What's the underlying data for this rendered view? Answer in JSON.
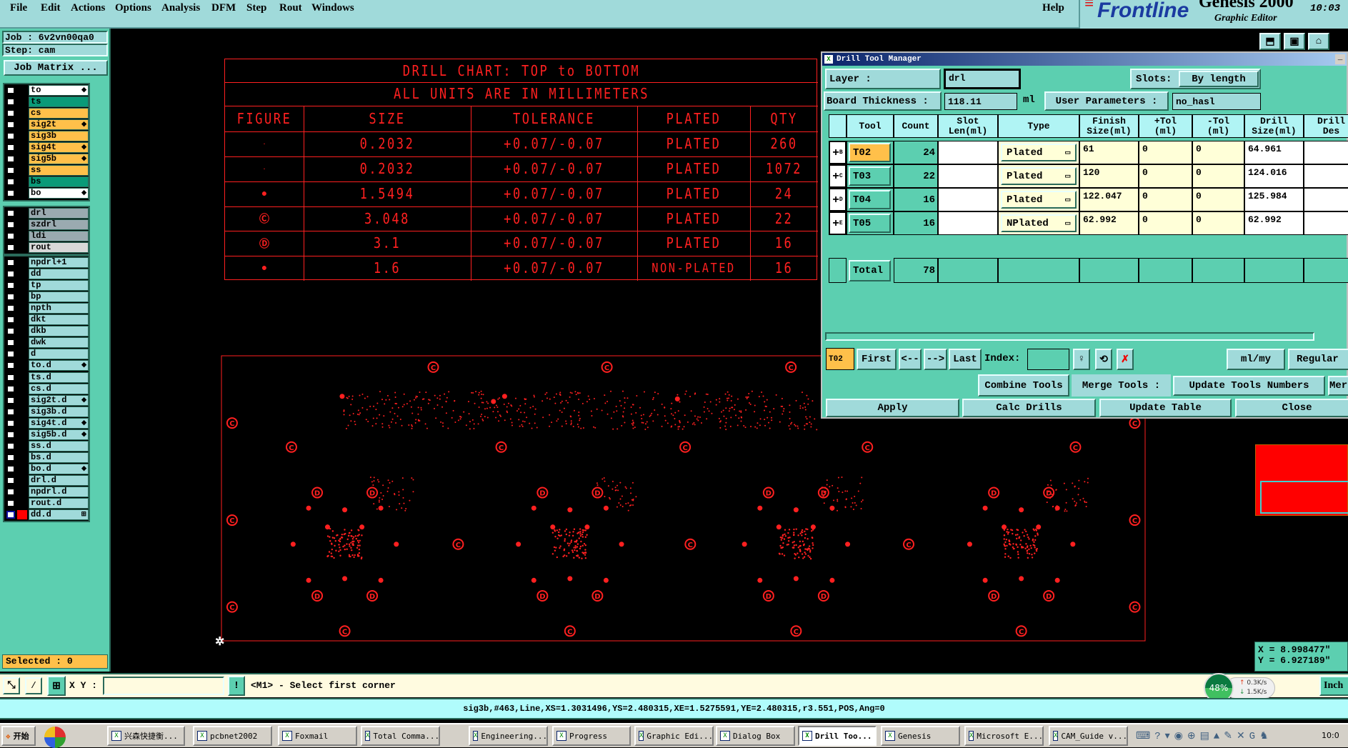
{
  "menubar": {
    "items": [
      "File",
      "Edit",
      "Actions",
      "Options",
      "Analysis",
      "DFM",
      "Step",
      "Rout",
      "Windows"
    ],
    "help": "Help"
  },
  "branding": {
    "logo": "Frontline",
    "product": "Genesis 2000",
    "subtitle": "Graphic Editor",
    "time": "10:03"
  },
  "left_panel": {
    "job": "Job :  6v2vn00qa0",
    "step": "Step:  cam",
    "job_matrix": "Job Matrix ...",
    "selected": "Selected : 0",
    "layers": [
      {
        "name": "to",
        "color": "#ffffff",
        "arrow": true,
        "group": 0
      },
      {
        "name": "ts",
        "color": "#0a9a78",
        "group": 0
      },
      {
        "name": "cs",
        "color": "#ffc04a",
        "group": 0
      },
      {
        "name": "sig2t",
        "color": "#ffc04a",
        "arrow": true,
        "group": 0
      },
      {
        "name": "sig3b",
        "color": "#ffc04a",
        "group": 0
      },
      {
        "name": "sig4t",
        "color": "#ffc04a",
        "arrow": true,
        "group": 0
      },
      {
        "name": "sig5b",
        "color": "#ffc04a",
        "arrow": true,
        "group": 0
      },
      {
        "name": "ss",
        "color": "#ffc04a",
        "group": 0
      },
      {
        "name": "bs",
        "color": "#0a9a78",
        "group": 0
      },
      {
        "name": "bo",
        "color": "#ffffff",
        "arrow": true,
        "group": 0
      },
      {
        "name": "drl",
        "color": "#9aaab0",
        "group": 1
      },
      {
        "name": "szdrl",
        "color": "#9aaab0",
        "group": 1
      },
      {
        "name": "ldi",
        "color": "#9aaab0",
        "group": 1
      },
      {
        "name": "rout",
        "color": "#d8d8d8",
        "group": 1
      },
      {
        "name": "npdrl+1",
        "color": "#a0dada",
        "group": 2
      },
      {
        "name": "dd",
        "color": "#a0dada",
        "group": 2
      },
      {
        "name": "tp",
        "color": "#a0dada",
        "group": 2
      },
      {
        "name": "bp",
        "color": "#a0dada",
        "group": 2
      },
      {
        "name": "npth",
        "color": "#a0dada",
        "group": 2
      },
      {
        "name": "dkt",
        "color": "#a0dada",
        "group": 2
      },
      {
        "name": "dkb",
        "color": "#a0dada",
        "group": 2
      },
      {
        "name": "dwk",
        "color": "#a0dada",
        "group": 2
      },
      {
        "name": "d",
        "color": "#a0dada",
        "group": 2
      },
      {
        "name": "to.d",
        "color": "#a0dada",
        "arrow": true,
        "group": 2
      },
      {
        "name": "ts.d",
        "color": "#a0dada",
        "group": 2
      },
      {
        "name": "cs.d",
        "color": "#a0dada",
        "group": 2
      },
      {
        "name": "sig2t.d",
        "color": "#a0dada",
        "arrow": true,
        "group": 2
      },
      {
        "name": "sig3b.d",
        "color": "#a0dada",
        "group": 2
      },
      {
        "name": "sig4t.d",
        "color": "#a0dada",
        "arrow": true,
        "group": 2
      },
      {
        "name": "sig5b.d",
        "color": "#a0dada",
        "arrow": true,
        "group": 2
      },
      {
        "name": "ss.d",
        "color": "#a0dada",
        "group": 2
      },
      {
        "name": "bs.d",
        "color": "#a0dada",
        "group": 2
      },
      {
        "name": "bo.d",
        "color": "#a0dada",
        "arrow": true,
        "group": 2
      },
      {
        "name": "drl.d",
        "color": "#a0dada",
        "group": 2
      },
      {
        "name": "npdrl.d",
        "color": "#a0dada",
        "group": 2
      },
      {
        "name": "rout.d",
        "color": "#a0dada",
        "group": 2
      },
      {
        "name": "dd.d",
        "color": "#a0dada",
        "active": true,
        "group": 2
      }
    ]
  },
  "drill_chart": {
    "title": "DRILL CHART: TOP to BOTTOM",
    "subtitle": "ALL UNITS ARE IN MILLIMETERS",
    "headers": [
      "FIGURE",
      "SIZE",
      "TOLERANCE",
      "PLATED",
      "QTY"
    ],
    "rows": [
      {
        "figure": "dot-small",
        "size": "0.2032",
        "tol": "+0.07/-0.07",
        "plated": "PLATED",
        "qty": "260"
      },
      {
        "figure": "dot-small",
        "size": "0.2032",
        "tol": "+0.07/-0.07",
        "plated": "PLATED",
        "qty": "1072"
      },
      {
        "figure": "circle-v",
        "size": "1.5494",
        "tol": "+0.07/-0.07",
        "plated": "PLATED",
        "qty": "24"
      },
      {
        "figure": "circle-c",
        "size": "3.048",
        "tol": "+0.07/-0.07",
        "plated": "PLATED",
        "qty": "22"
      },
      {
        "figure": "circle-d",
        "size": "3.1",
        "tol": "+0.07/-0.07",
        "plated": "PLATED",
        "qty": "16"
      },
      {
        "figure": "dot-filled",
        "size": "1.6",
        "tol": "+0.07/-0.07",
        "plated": "NON-PLATED",
        "qty": "16"
      }
    ]
  },
  "drill_tool_manager": {
    "title": "Drill Tool Manager",
    "layer_label": "Layer       :",
    "layer_value": "drl",
    "slots_label": "Slots:",
    "slots_value": "By length",
    "board_thickness_label": "Board Thickness :",
    "board_thickness": "118.11",
    "thickness_unit": "ml",
    "user_params_label": "User Parameters :",
    "user_params_value": "no_hasl",
    "columns": [
      "",
      "Tool",
      "Count",
      "Slot\nLen(ml)",
      "Type",
      "Finish\nSize(ml)",
      "+Tol\n(ml)",
      "-Tol\n(ml)",
      "Drill\nSize(ml)",
      "Drill\nDes"
    ],
    "tools": [
      {
        "letter": "B",
        "tool": "T02",
        "count": "24",
        "slot": "",
        "type": "Plated",
        "finish": "61",
        "ptol": "0",
        "mtol": "0",
        "drill": "64.961",
        "des": "",
        "selected": true
      },
      {
        "letter": "C",
        "tool": "T03",
        "count": "22",
        "slot": "",
        "type": "Plated",
        "finish": "120",
        "ptol": "0",
        "mtol": "0",
        "drill": "124.016",
        "des": ""
      },
      {
        "letter": "D",
        "tool": "T04",
        "count": "16",
        "slot": "",
        "type": "Plated",
        "finish": "122.047",
        "ptol": "0",
        "mtol": "0",
        "drill": "125.984",
        "des": ""
      },
      {
        "letter": "E",
        "tool": "T05",
        "count": "16",
        "slot": "",
        "type": "NPlated",
        "finish": "62.992",
        "ptol": "0",
        "mtol": "0",
        "drill": "62.992",
        "des": ""
      }
    ],
    "total_label": "Total",
    "total_count": "78",
    "current_tool": "T02",
    "first": "First",
    "prev": "<--",
    "next": "-->",
    "last": "Last",
    "index_label": "Index:",
    "index_value": "",
    "units": "ml/my",
    "mode": "Regular",
    "combine": "Combine Tools",
    "merge_label": "Merge Tools :",
    "merge_value": "Update Tools Numbers",
    "merge_more": "Mer",
    "apply": "Apply",
    "calc": "Calc Drills",
    "update_table": "Update Table",
    "close": "Close"
  },
  "coords": {
    "x": "X = 8.998477\"",
    "y": "Y = 6.927189\""
  },
  "command_bar": {
    "xy_label": "X Y :",
    "xy_value": "",
    "prompt": "<M1> - Select first corner",
    "units": "Inch"
  },
  "status": "sig3b,#463,Line,XS=1.3031496,YS=2.480315,XE=1.5275591,YE=2.480315,r3.551,POS,Ang=0",
  "network": {
    "percent": "48%",
    "up": "0.3K/s",
    "down": "1.5K/s"
  },
  "taskbar": {
    "start": "开始",
    "items": [
      "兴森快捷衡...",
      "pcbnet2002",
      "Foxmail",
      "Total Comma...",
      "Engineering...",
      "Progress",
      "Graphic Edi...",
      "Dialog Box",
      "Drill Too...",
      "Genesis",
      "Microsoft E...",
      "CAM_Guide v..."
    ],
    "active": "Drill Too...",
    "clock": "10:0"
  },
  "colors": {
    "panel": "#5ccfb0",
    "menu": "#a0dada",
    "drawing": "#ff2020",
    "highlight": "#ffc04a"
  }
}
